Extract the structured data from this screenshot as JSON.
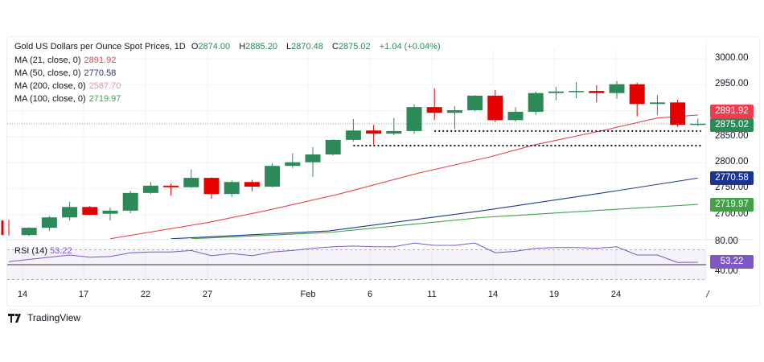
{
  "header": {
    "symbol_title": "Gold US Dollars per Ounce Spot Prices, 1D",
    "open_label": "O",
    "open": "2874.00",
    "high_label": "H",
    "high": "2885.20",
    "low_label": "L",
    "low": "2870.48",
    "close_label": "C",
    "close": "2875.02",
    "change": "+1.04 (+0.04%)"
  },
  "indicators": [
    {
      "label": "MA (21, close, 0)",
      "value": "2891.92",
      "color": "#e8434f"
    },
    {
      "label": "MA (50, close, 0)",
      "value": "2770.58",
      "color": "#1e3a8a"
    },
    {
      "label": "MA (200, close, 0)",
      "value": "2587.70",
      "color": "#f08cb0"
    },
    {
      "label": "MA (100, close, 0)",
      "value": "2719.97",
      "color": "#43a047"
    }
  ],
  "rsi": {
    "label": "RSI (14)",
    "value": "53.22",
    "color": "#7e57c2"
  },
  "price_tags": {
    "ma21": "2891.92",
    "last": "2875.02",
    "ma50": "2770.58",
    "ma100": "2719.97",
    "rsi": "53.22"
  },
  "price_axis": [
    "3000.00",
    "2950.00",
    "2850.00",
    "2800.00",
    "2750.00",
    "2700.00"
  ],
  "rsi_axis": [
    "80.00",
    "40.00"
  ],
  "date_axis": [
    "14",
    "17",
    "22",
    "27",
    "Feb",
    "6",
    "11",
    "14",
    "19",
    "24",
    "/"
  ],
  "branding": "TradingView",
  "chart_data": {
    "type": "candlestick",
    "title": "Gold US Dollars per Ounce Spot Prices, 1D",
    "ylim": [
      2654,
      3010
    ],
    "colors": {
      "up": "#2b8a57",
      "down": "#e50000"
    },
    "candles_ohlc": [
      [
        2689,
        2690,
        2660,
        2661
      ],
      [
        2661,
        2676,
        2659,
        2675
      ],
      [
        2675,
        2698,
        2669,
        2695
      ],
      [
        2695,
        2725,
        2689,
        2715
      ],
      [
        2715,
        2717,
        2699,
        2700
      ],
      [
        2702,
        2714,
        2689,
        2708
      ],
      [
        2708,
        2746,
        2703,
        2742
      ],
      [
        2742,
        2763,
        2740,
        2756
      ],
      [
        2756,
        2760,
        2737,
        2753
      ],
      [
        2753,
        2787,
        2752,
        2771
      ],
      [
        2771,
        2772,
        2731,
        2740
      ],
      [
        2740,
        2766,
        2734,
        2763
      ],
      [
        2763,
        2767,
        2745,
        2754
      ],
      [
        2754,
        2799,
        2753,
        2794
      ],
      [
        2794,
        2818,
        2790,
        2801
      ],
      [
        2801,
        2830,
        2773,
        2816
      ],
      [
        2816,
        2845,
        2814,
        2844
      ],
      [
        2844,
        2884,
        2841,
        2862
      ],
      [
        2862,
        2873,
        2835,
        2856
      ],
      [
        2856,
        2886,
        2853,
        2861
      ],
      [
        2861,
        2912,
        2856,
        2907
      ],
      [
        2907,
        2943,
        2882,
        2896
      ],
      [
        2896,
        2909,
        2865,
        2901
      ],
      [
        2901,
        2930,
        2899,
        2929
      ],
      [
        2929,
        2940,
        2878,
        2882
      ],
      [
        2882,
        2907,
        2879,
        2898
      ],
      [
        2898,
        2937,
        2892,
        2934
      ],
      [
        2934,
        2946,
        2920,
        2937
      ],
      [
        2937,
        2955,
        2924,
        2938
      ],
      [
        2938,
        2949,
        2916,
        2934
      ],
      [
        2934,
        2957,
        2923,
        2951
      ],
      [
        2951,
        2954,
        2889,
        2913
      ],
      [
        2913,
        2930,
        2892,
        2916
      ],
      [
        2916,
        2921,
        2869,
        2873
      ],
      [
        2874.0,
        2885.2,
        2870.48,
        2875.02
      ]
    ],
    "moving_averages": [
      {
        "name": "MA21",
        "color": "#e8434f",
        "points": [
          [
            5,
            2654
          ],
          [
            9.8,
            2685
          ],
          [
            12.7,
            2708
          ],
          [
            16.2,
            2739
          ],
          [
            20.2,
            2780
          ],
          [
            23.7,
            2811
          ],
          [
            26,
            2835
          ],
          [
            29.3,
            2862
          ],
          [
            32,
            2886
          ],
          [
            34,
            2891.92
          ]
        ]
      },
      {
        "name": "MA50",
        "color": "#1e3a8a",
        "points": [
          [
            8,
            2654
          ],
          [
            15.8,
            2669
          ],
          [
            23.4,
            2708
          ],
          [
            29.3,
            2742
          ],
          [
            34,
            2770.58
          ]
        ]
      },
      {
        "name": "MA100",
        "color": "#43a047",
        "points": [
          [
            9,
            2654
          ],
          [
            15.8,
            2666
          ],
          [
            23.4,
            2695
          ],
          [
            29.3,
            2709
          ],
          [
            34,
            2719.97
          ]
        ]
      }
    ],
    "support_levels": [
      {
        "value": 2861,
        "from_index": 21
      },
      {
        "value": 2833,
        "from_index": 17
      }
    ],
    "rsi_values": [
      54,
      57,
      60,
      63,
      60,
      61,
      66,
      67,
      67,
      69,
      62,
      65,
      62,
      67,
      69,
      72,
      74,
      75,
      74,
      74,
      79,
      76,
      76,
      79,
      66,
      68,
      72,
      73,
      73,
      72,
      74,
      63,
      63,
      53,
      53.22
    ],
    "rsi_bands": [
      30,
      50,
      70
    ],
    "rsi_ylim": [
      28,
      83
    ]
  }
}
